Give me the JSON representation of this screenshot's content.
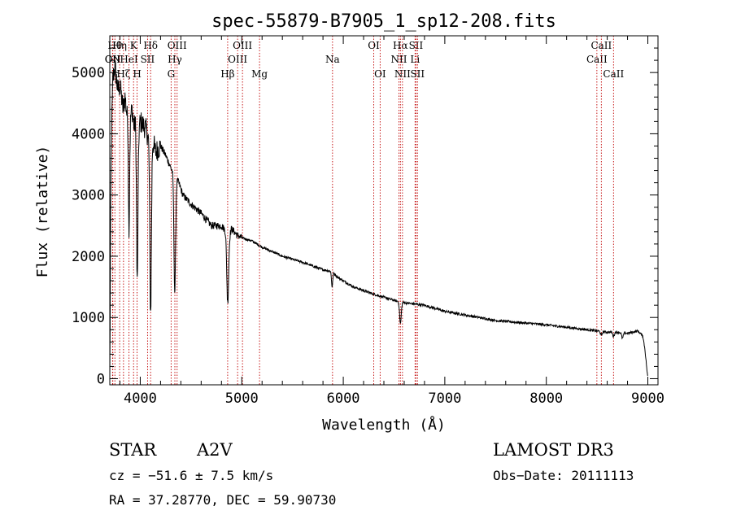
{
  "chart_data": {
    "type": "line",
    "title": "spec-55879-B7905_1_sp12-208.fits",
    "xlabel": "Wavelength (Å)",
    "ylabel": "Flux (relative)",
    "xlim": [
      3700,
      9100
    ],
    "ylim": [
      -100,
      5600
    ],
    "xticks": [
      4000,
      5000,
      6000,
      7000,
      8000,
      9000
    ],
    "yticks": [
      0,
      1000,
      2000,
      3000,
      4000,
      5000
    ],
    "spectrum_anchors": {
      "x": [
        3700,
        3710,
        3720,
        3730,
        3750,
        3780,
        3800,
        3830,
        3850,
        3870,
        3890,
        3900,
        3920,
        3940,
        3960,
        3980,
        4000,
        4050,
        4080,
        4110,
        4150,
        4200,
        4250,
        4300,
        4340,
        4380,
        4420,
        4500,
        4600,
        4700,
        4800,
        4850,
        4870,
        4900,
        4950,
        5000,
        5100,
        5200,
        5400,
        5600,
        5800,
        5890,
        5950,
        6100,
        6300,
        6500,
        6560,
        6650,
        6800,
        7000,
        7500,
        8000,
        8500,
        8600,
        8700,
        8800,
        8850,
        8900,
        8950,
        8970,
        9000
      ],
      "y": [
        0,
        3000,
        4200,
        4900,
        5100,
        4700,
        4800,
        4400,
        4600,
        4300,
        4500,
        4250,
        4400,
        4100,
        4300,
        4000,
        4200,
        4100,
        3950,
        4000,
        3700,
        3800,
        3650,
        3450,
        3300,
        3200,
        3000,
        2850,
        2700,
        2500,
        2500,
        2400,
        2300,
        2450,
        2350,
        2300,
        2250,
        2150,
        2000,
        1900,
        1780,
        1750,
        1650,
        1500,
        1380,
        1280,
        1250,
        1230,
        1200,
        1100,
        950,
        880,
        780,
        760,
        760,
        740,
        760,
        780,
        700,
        500,
        0
      ]
    },
    "absorption_features": [
      {
        "x": 3889,
        "depth": 2000,
        "width": 6
      },
      {
        "x": 3970,
        "depth": 2600,
        "width": 7
      },
      {
        "x": 4102,
        "depth": 2900,
        "width": 8
      },
      {
        "x": 4340,
        "depth": 1900,
        "width": 8
      },
      {
        "x": 4861,
        "depth": 1100,
        "width": 9
      },
      {
        "x": 5890,
        "depth": 250,
        "width": 6
      },
      {
        "x": 6563,
        "depth": 350,
        "width": 8
      },
      {
        "x": 8542,
        "depth": 60,
        "width": 8
      },
      {
        "x": 8662,
        "depth": 70,
        "width": 8
      },
      {
        "x": 8750,
        "depth": 90,
        "width": 8
      }
    ],
    "line_markers": [
      {
        "x": 3727,
        "row": 1,
        "label": "OII"
      },
      {
        "x": 3750,
        "row": 0,
        "label": "Hθ"
      },
      {
        "x": 3730,
        "row": 1,
        "label": "CN"
      },
      {
        "x": 3797,
        "row": 0,
        "label": "Hη"
      },
      {
        "x": 3835,
        "row": 2,
        "label": "Hζ"
      },
      {
        "x": 3889,
        "row": 1,
        "label": "HeI"
      },
      {
        "x": 3934,
        "row": 0,
        "label": "K"
      },
      {
        "x": 3969,
        "row": 2,
        "label": "H"
      },
      {
        "x": 4072,
        "row": 1,
        "label": "SII"
      },
      {
        "x": 4102,
        "row": 0,
        "label": "Hδ"
      },
      {
        "x": 4304,
        "row": 2,
        "label": "G"
      },
      {
        "x": 4341,
        "row": 1,
        "label": "Hγ"
      },
      {
        "x": 4363,
        "row": 0,
        "label": "OIII"
      },
      {
        "x": 4861,
        "row": 2,
        "label": "Hβ"
      },
      {
        "x": 4959,
        "row": 1,
        "label": "OIII"
      },
      {
        "x": 5007,
        "row": 0,
        "label": "OIII"
      },
      {
        "x": 5175,
        "row": 2,
        "label": "Mg"
      },
      {
        "x": 5894,
        "row": 1,
        "label": "Na"
      },
      {
        "x": 6300,
        "row": 0,
        "label": "OI"
      },
      {
        "x": 6363,
        "row": 2,
        "label": "OI"
      },
      {
        "x": 6548,
        "row": 1,
        "label": "NII"
      },
      {
        "x": 6563,
        "row": 0,
        "label": "Hα"
      },
      {
        "x": 6583,
        "row": 2,
        "label": "NII"
      },
      {
        "x": 6707,
        "row": 1,
        "label": "Li"
      },
      {
        "x": 6716,
        "row": 0,
        "label": "SII"
      },
      {
        "x": 6731,
        "row": 2,
        "label": "SII"
      },
      {
        "x": 8498,
        "row": 1,
        "label": "CaII"
      },
      {
        "x": 8542,
        "row": 0,
        "label": "CaII"
      },
      {
        "x": 8662,
        "row": 2,
        "label": "CaII"
      }
    ]
  },
  "info": {
    "class_label": "STAR",
    "subclass": "A2V",
    "survey": "LAMOST DR3",
    "cz": "cz = −51.6 ± 7.5 km/s",
    "obs_date": "Obs−Date: 20111113",
    "coords": "RA =  37.28770, DEC =  59.90730"
  }
}
